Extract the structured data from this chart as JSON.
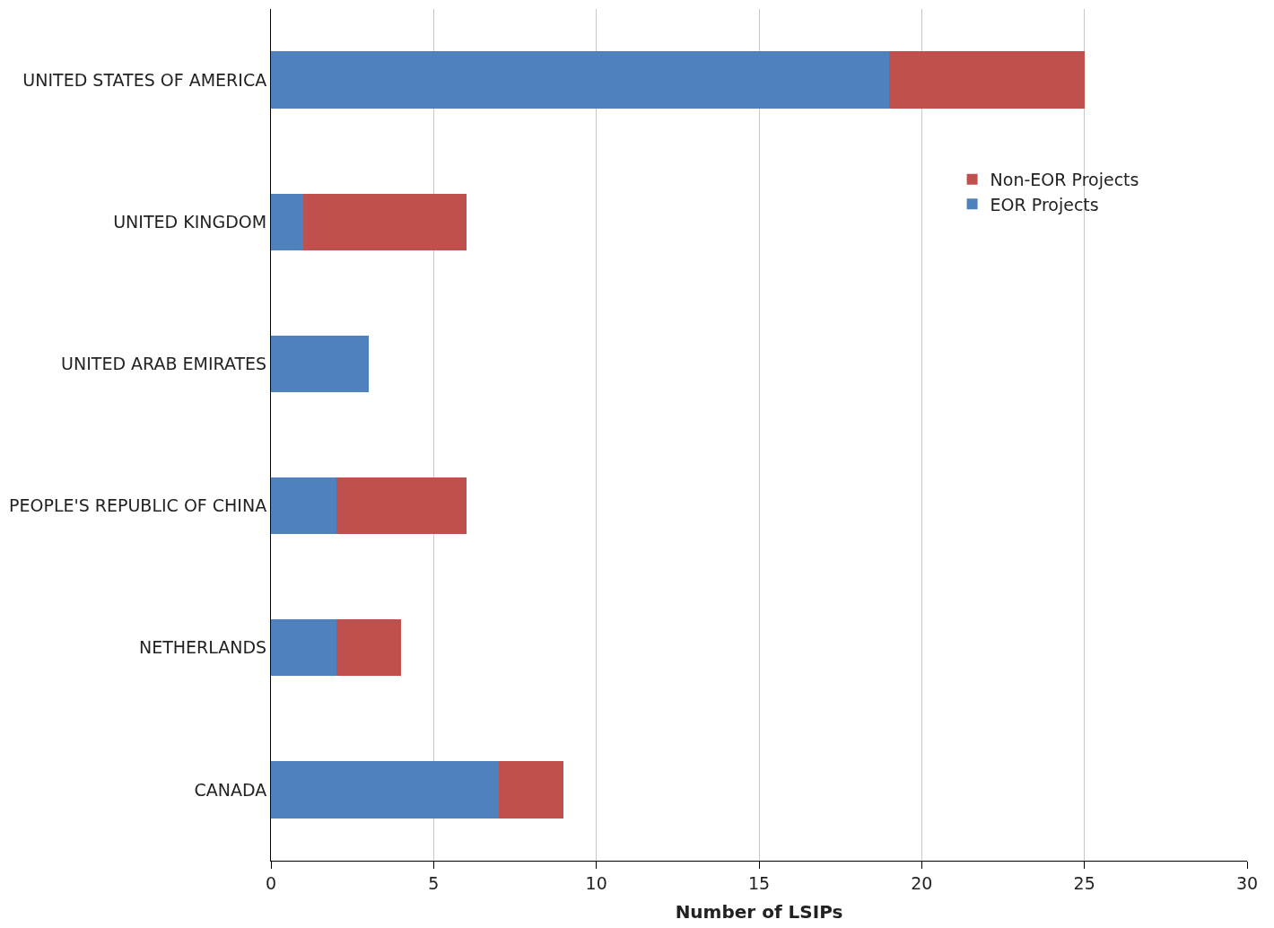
{
  "chart_data": {
    "type": "bar",
    "orientation": "horizontal",
    "stacked": true,
    "xlabel": "Number of LSIPs",
    "categories": [
      "UNITED STATES OF AMERICA",
      "UNITED KINGDOM",
      "UNITED ARAB EMIRATES",
      "PEOPLE'S REPUBLIC OF CHINA",
      "NETHERLANDS",
      "CANADA"
    ],
    "series": [
      {
        "name": "EOR Projects",
        "color": "#4f81bd",
        "values": [
          19,
          1,
          3,
          2,
          2,
          7
        ]
      },
      {
        "name": "Non-EOR Projects",
        "color": "#c0504d",
        "values": [
          6,
          5,
          0,
          4,
          2,
          2
        ]
      }
    ],
    "xlim": [
      0,
      30
    ],
    "xticks": [
      0,
      5,
      10,
      15,
      20,
      25,
      30
    ],
    "grid": "x",
    "legend": "right"
  }
}
